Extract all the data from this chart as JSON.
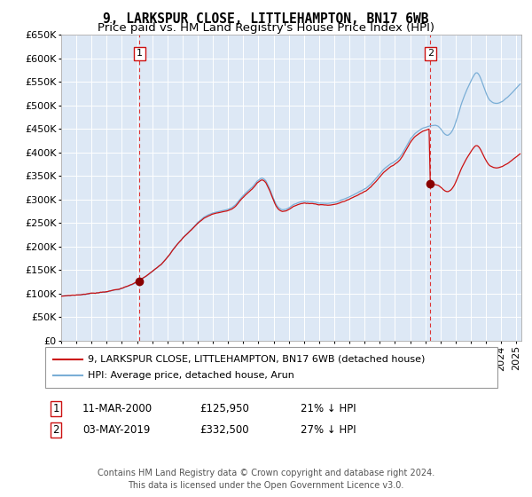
{
  "title": "9, LARKSPUR CLOSE, LITTLEHAMPTON, BN17 6WB",
  "subtitle": "Price paid vs. HM Land Registry's House Price Index (HPI)",
  "ylim": [
    0,
    650000
  ],
  "yticks": [
    0,
    50000,
    100000,
    150000,
    200000,
    250000,
    300000,
    350000,
    400000,
    450000,
    500000,
    550000,
    600000,
    650000
  ],
  "ytick_labels": [
    "£0",
    "£50K",
    "£100K",
    "£150K",
    "£200K",
    "£250K",
    "£300K",
    "£350K",
    "£400K",
    "£450K",
    "£500K",
    "£550K",
    "£600K",
    "£650K"
  ],
  "hpi_color": "#7aaed6",
  "price_color": "#cc1111",
  "marker_color": "#880000",
  "vline_color": "#dd3333",
  "background_color": "#dde8f5",
  "grid_color": "#ffffff",
  "legend_label_price": "9, LARKSPUR CLOSE, LITTLEHAMPTON, BN17 6WB (detached house)",
  "legend_label_hpi": "HPI: Average price, detached house, Arun",
  "annotation1_label": "1",
  "annotation1_date": "11-MAR-2000",
  "annotation1_price": "£125,950",
  "annotation1_pct": "21% ↓ HPI",
  "annotation2_label": "2",
  "annotation2_date": "03-MAY-2019",
  "annotation2_price": "£332,500",
  "annotation2_pct": "27% ↓ HPI",
  "footer_text": "Contains HM Land Registry data © Crown copyright and database right 2024.\nThis data is licensed under the Open Government Licence v3.0.",
  "title_fontsize": 10.5,
  "subtitle_fontsize": 9.5,
  "tick_fontsize": 8,
  "legend_fontsize": 8,
  "footer_fontsize": 7,
  "annotation_fontsize": 8.5
}
